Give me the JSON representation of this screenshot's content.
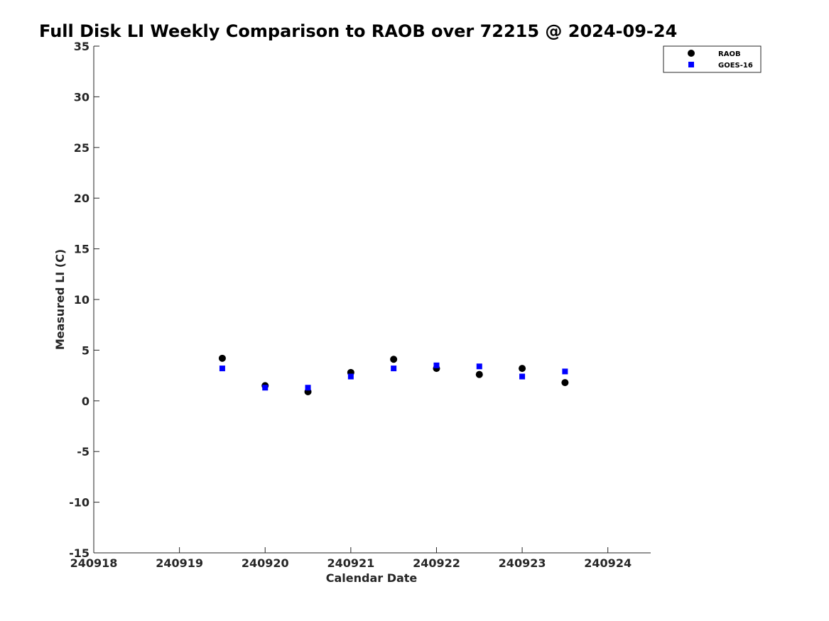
{
  "chart_data": {
    "type": "scatter",
    "title": "Full Disk LI Weekly Comparison to RAOB over 72215 @ 2024-09-24",
    "xlabel": "Calendar Date",
    "ylabel": "Measured LI (C)",
    "xlim": [
      240918,
      240924.5
    ],
    "ylim": [
      -15,
      35
    ],
    "x_ticks": [
      240918,
      240919,
      240920,
      240921,
      240922,
      240923,
      240924
    ],
    "x_tick_labels": [
      "240918",
      "240919",
      "240920",
      "240921",
      "240922",
      "240923",
      "240924"
    ],
    "y_ticks": [
      -15,
      -10,
      -5,
      0,
      5,
      10,
      15,
      20,
      25,
      30,
      35
    ],
    "y_tick_labels": [
      "-15",
      "-10",
      "-5",
      "0",
      "5",
      "10",
      "15",
      "20",
      "25",
      "30",
      "35"
    ],
    "grid": false,
    "legend_position": "top-right",
    "series": [
      {
        "name": "RAOB",
        "marker": "circle",
        "color": "#000000",
        "x": [
          240919.5,
          240920,
          240920.5,
          240921,
          240921.5,
          240922,
          240922.5,
          240923,
          240923.5
        ],
        "y": [
          4.2,
          1.5,
          0.9,
          2.8,
          4.1,
          3.2,
          2.6,
          3.2,
          1.8
        ]
      },
      {
        "name": "GOES-16",
        "marker": "square",
        "color": "#0000ff",
        "x": [
          240919.5,
          240920,
          240920.5,
          240921,
          240921.5,
          240922,
          240922.5,
          240923,
          240923.5
        ],
        "y": [
          3.2,
          1.3,
          1.3,
          2.4,
          3.2,
          3.5,
          3.4,
          2.4,
          2.9
        ]
      }
    ]
  }
}
